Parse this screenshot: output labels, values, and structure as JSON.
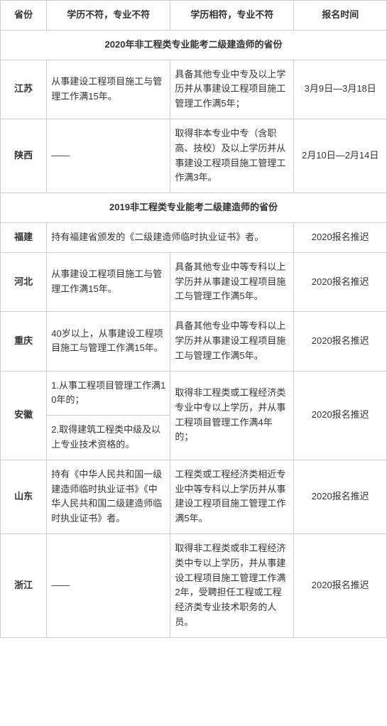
{
  "headers": [
    "省份",
    "学历不符，专业不符",
    "学历相符，专业不符",
    "报名时间"
  ],
  "section1": "2020年非工程类专业能考二级建造师的省份",
  "rows1": [
    {
      "p": "江苏",
      "c2": "从事建设工程项目施工与管理工作满15年。",
      "c3": "具备其他专业中专及以上学历并从事建设工程项目施工管理工作满5年；",
      "c4": "3月9日—3月18日"
    },
    {
      "p": "陕西",
      "c2": "——",
      "c3": "取得非本专业中专（含职高、技校）及以上学历并从事建设工程项目施工管理工作满3年。",
      "c4": "2月10日—2月14日"
    }
  ],
  "section2": "2019非工程类专业能考二级建造师的省份",
  "rows2": {
    "fujian": {
      "p": "福建",
      "c23": "持有福建省颁发的《二级建造师临时执业证书》者。",
      "c4": "2020报名推迟"
    },
    "hebei": {
      "p": "河北",
      "c2": "从事建设工程项目施工与管理工作满15年。",
      "c3": "具备其他专业中等专科以上学历并从事建设工程项目施工与管理工作满5年。",
      "c4": "2020报名推迟"
    },
    "chongqing": {
      "p": "重庆",
      "c2": "40岁以上，从事建设工程项目施工与管理工作满15年。",
      "c3": "具备其他专业中等专科以上学历并从事建设工程项目施工与管理工作满5年。",
      "c4": "2020报名推迟"
    },
    "anhui": {
      "p": "安徽",
      "c2a": "1.从事工程项目管理工作满10年的；",
      "c2b": "2.取得建筑工程类中级及以上专业技术资格的。",
      "c3": "取得非工程类或工程经济类专业中专以上学历，并从事工程项目管理工作满4年的；",
      "c4": "2020报名推迟"
    },
    "shandong": {
      "p": "山东",
      "c2": "持有《中华人民共和国一级建造师临时执业证书》《中华人民共和国二级建造师临时执业证书》者。",
      "c3": "工程类或工程经济类相近专业中等专科以上学历并从事建设工程项目施工管理工作满5年。",
      "c4": "2020报名推迟"
    },
    "zhejiang": {
      "p": "浙江",
      "c2": "——",
      "c3": "取得非工程类或非工程经济类中专以上学历，并从事建设工程项目施工管理工作满2年，受聘担任工程或工程经济类专业技术职务的人员。",
      "c4": "2020报名推迟"
    }
  }
}
